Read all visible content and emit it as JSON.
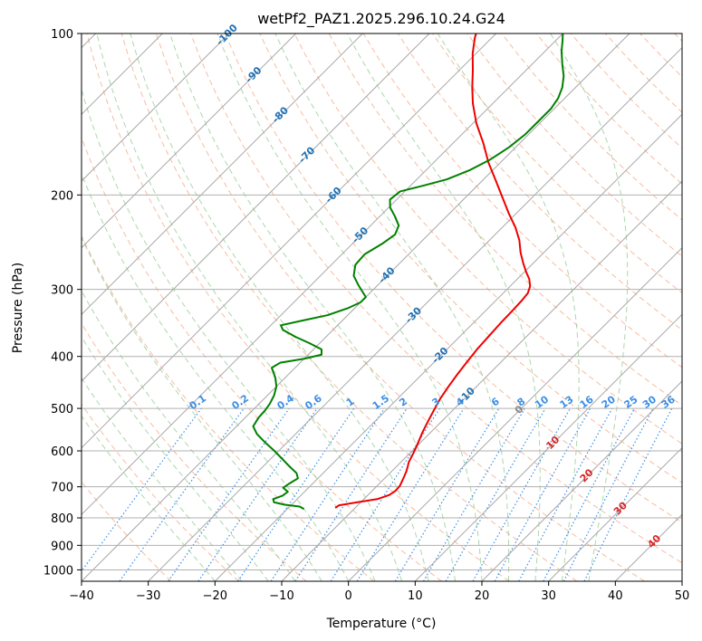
{
  "chart_data": {
    "type": "line",
    "subtype": "skew-t log-p",
    "title": "wetPf2_PAZ1.2025.296.10.24.G24",
    "xlabel": "Temperature (°C)",
    "ylabel": "Pressure (hPa)",
    "xlim": [
      -40,
      50
    ],
    "ylim": [
      1050,
      100
    ],
    "y_scale": "log",
    "grid": true,
    "x_ticks": [
      -40,
      -30,
      -20,
      -10,
      0,
      10,
      20,
      30,
      40,
      50
    ],
    "x_tick_labels": [
      "−40",
      "−30",
      "−20",
      "−10",
      "0",
      "10",
      "20",
      "30",
      "40",
      "50"
    ],
    "y_ticks": [
      100,
      200,
      300,
      400,
      500,
      600,
      700,
      800,
      900,
      1000
    ],
    "y_tick_labels": [
      "100",
      "200",
      "300",
      "400",
      "500",
      "600",
      "700",
      "800",
      "900",
      "1000"
    ],
    "colors": {
      "temperature": "#ee0000",
      "dewpoint": "#008000",
      "isotherm": "#a8a8a8",
      "dry_adiabat": "#f4a582",
      "moist_adiabat": "#8fc98f",
      "mixing_ratio": "#3a8ee6",
      "isotherm_label_cold": "#2171b5",
      "isotherm_label_warm": "#d62728",
      "isotherm_label_zero": "#888888"
    },
    "series": [
      {
        "name": "",
        "role": "temperature",
        "points": [
          [
            -13.0,
            766
          ],
          [
            -12.8,
            758
          ],
          [
            -10.5,
            748
          ],
          [
            -8.0,
            738
          ],
          [
            -6.8,
            725
          ],
          [
            -6.5,
            712
          ],
          [
            -6.6,
            697
          ],
          [
            -7.0,
            682
          ],
          [
            -7.4,
            668
          ],
          [
            -7.8,
            655
          ],
          [
            -8.3,
            642
          ],
          [
            -8.8,
            630
          ],
          [
            -9.5,
            605
          ],
          [
            -10.3,
            580
          ],
          [
            -11.2,
            555
          ],
          [
            -12.0,
            530
          ],
          [
            -12.8,
            505
          ],
          [
            -13.6,
            480
          ],
          [
            -14.2,
            455
          ],
          [
            -14.7,
            432
          ],
          [
            -15.1,
            410
          ],
          [
            -15.5,
            388
          ],
          [
            -15.7,
            367
          ],
          [
            -15.9,
            347
          ],
          [
            -16.0,
            328
          ],
          [
            -16.1,
            315
          ],
          [
            -16.3,
            305
          ],
          [
            -17.0,
            296
          ],
          [
            -18.2,
            287
          ],
          [
            -19.8,
            278
          ],
          [
            -21.5,
            268
          ],
          [
            -23.5,
            256
          ],
          [
            -25.5,
            243
          ],
          [
            -28.0,
            230
          ],
          [
            -31.0,
            217
          ],
          [
            -34.5,
            202
          ],
          [
            -38.0,
            188
          ],
          [
            -41.8,
            174
          ],
          [
            -45.5,
            160
          ],
          [
            -49.5,
            147
          ],
          [
            -53.0,
            135
          ],
          [
            -55.5,
            126
          ],
          [
            -58.0,
            117
          ],
          [
            -60.5,
            109
          ],
          [
            -62.5,
            102
          ],
          [
            -63.0,
            100
          ]
        ]
      },
      {
        "name": "",
        "role": "dewpoint",
        "points": [
          [
            -17.5,
            770
          ],
          [
            -18.5,
            762
          ],
          [
            -21.0,
            756
          ],
          [
            -23.0,
            748
          ],
          [
            -23.6,
            738
          ],
          [
            -22.7,
            727
          ],
          [
            -22.5,
            715
          ],
          [
            -23.8,
            703
          ],
          [
            -23.5,
            690
          ],
          [
            -23.0,
            675
          ],
          [
            -24.0,
            660
          ],
          [
            -26.2,
            640
          ],
          [
            -28.6,
            618
          ],
          [
            -31.0,
            597
          ],
          [
            -33.5,
            577
          ],
          [
            -35.8,
            558
          ],
          [
            -37.5,
            540
          ],
          [
            -38.0,
            520
          ],
          [
            -38.1,
            505
          ],
          [
            -38.4,
            490
          ],
          [
            -39.0,
            473
          ],
          [
            -40.0,
            455
          ],
          [
            -41.5,
            438
          ],
          [
            -43.5,
            420
          ],
          [
            -43.0,
            411
          ],
          [
            -40.0,
            404
          ],
          [
            -38.0,
            397
          ],
          [
            -38.8,
            388
          ],
          [
            -41.5,
            378
          ],
          [
            -44.5,
            368
          ],
          [
            -47.5,
            357
          ],
          [
            -48.5,
            350
          ],
          [
            -46.0,
            343
          ],
          [
            -43.0,
            335
          ],
          [
            -41.0,
            325
          ],
          [
            -40.0,
            317
          ],
          [
            -40.0,
            310
          ],
          [
            -41.3,
            303
          ],
          [
            -43.0,
            294
          ],
          [
            -45.0,
            283
          ],
          [
            -46.4,
            270
          ],
          [
            -46.6,
            258
          ],
          [
            -45.5,
            246
          ],
          [
            -45.0,
            237
          ],
          [
            -45.8,
            228
          ],
          [
            -47.8,
            219
          ],
          [
            -49.8,
            211
          ],
          [
            -51.0,
            204
          ],
          [
            -50.7,
            197
          ],
          [
            -48.0,
            192
          ],
          [
            -45.5,
            187
          ],
          [
            -43.5,
            180
          ],
          [
            -42.0,
            172
          ],
          [
            -41.0,
            163
          ],
          [
            -40.5,
            154
          ],
          [
            -40.5,
            146
          ],
          [
            -40.5,
            138
          ],
          [
            -41.0,
            132
          ],
          [
            -42.0,
            126
          ],
          [
            -43.5,
            120
          ],
          [
            -45.5,
            114
          ],
          [
            -47.5,
            108
          ],
          [
            -49.0,
            103
          ],
          [
            -50.0,
            100
          ]
        ]
      }
    ],
    "isotherm_labels": [
      {
        "text": "-100",
        "temp": -100
      },
      {
        "text": "-90",
        "temp": -90
      },
      {
        "text": "-80",
        "temp": -80
      },
      {
        "text": "-70",
        "temp": -70
      },
      {
        "text": "-60",
        "temp": -60
      },
      {
        "text": "-50",
        "temp": -50
      },
      {
        "text": "-40",
        "temp": -40
      },
      {
        "text": "-30",
        "temp": -30
      },
      {
        "text": "-20",
        "temp": -20
      },
      {
        "text": "-10",
        "temp": -10
      },
      {
        "text": "0",
        "temp": 0
      },
      {
        "text": "10",
        "temp": 10
      },
      {
        "text": "20",
        "temp": 20
      },
      {
        "text": "30",
        "temp": 30
      },
      {
        "text": "40",
        "temp": 40
      }
    ],
    "mixing_ratio_lines": [
      {
        "text": "0.1",
        "value": 0.1
      },
      {
        "text": "0.2",
        "value": 0.2
      },
      {
        "text": "0.4",
        "value": 0.4
      },
      {
        "text": "0.6",
        "value": 0.6
      },
      {
        "text": "1",
        "value": 1
      },
      {
        "text": "1.5",
        "value": 1.5
      },
      {
        "text": "2",
        "value": 2
      },
      {
        "text": "3",
        "value": 3
      },
      {
        "text": "4",
        "value": 4
      },
      {
        "text": "6",
        "value": 6
      },
      {
        "text": "8",
        "value": 8
      },
      {
        "text": "10",
        "value": 10
      },
      {
        "text": "13",
        "value": 13
      },
      {
        "text": "16",
        "value": 16
      },
      {
        "text": "20",
        "value": 20
      },
      {
        "text": "25",
        "value": 25
      },
      {
        "text": "30",
        "value": 30
      },
      {
        "text": "36",
        "value": 36
      }
    ]
  }
}
